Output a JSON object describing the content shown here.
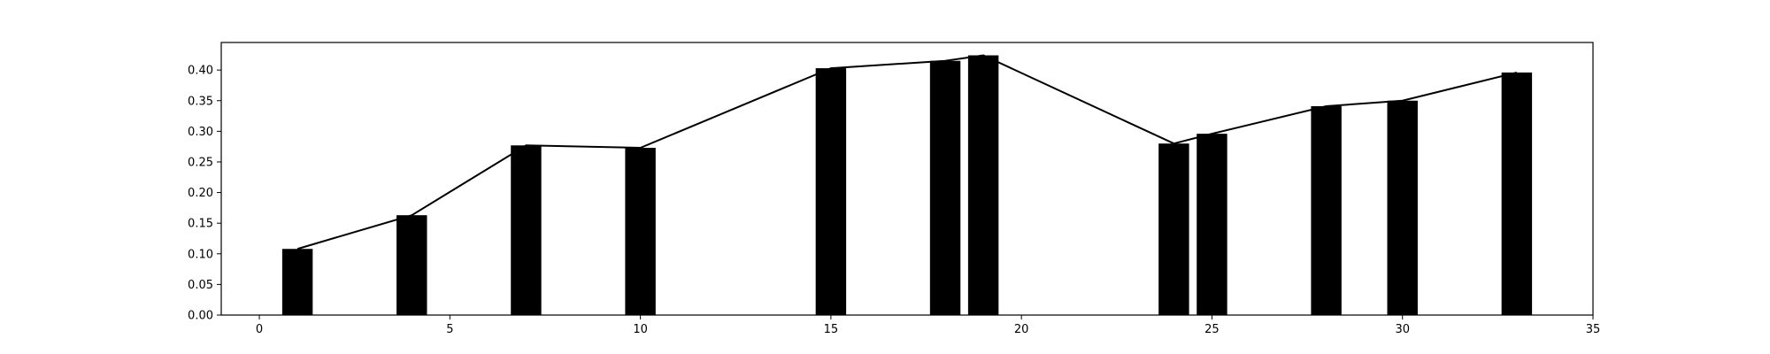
{
  "chart_data": {
    "type": "bar",
    "title": "",
    "xlabel": "",
    "ylabel": "",
    "xlim": [
      -1,
      35
    ],
    "ylim": [
      0,
      0.445
    ],
    "bar_width": 0.8,
    "grid": false,
    "legend": "none",
    "colors": {
      "bar": "#000000",
      "line": "#000000",
      "axes": "#000000"
    },
    "x_ticks": [
      0,
      5,
      10,
      15,
      20,
      25,
      30,
      35
    ],
    "x_tick_labels": [
      "0",
      "5",
      "10",
      "15",
      "20",
      "25",
      "30",
      "35"
    ],
    "y_ticks": [
      0,
      0.05,
      0.1,
      0.15,
      0.2,
      0.25,
      0.3,
      0.35,
      0.4
    ],
    "y_tick_labels": [
      "0.00",
      "0.05",
      "0.10",
      "0.15",
      "0.20",
      "0.25",
      "0.30",
      "0.35",
      "0.40"
    ],
    "x": [
      1,
      4,
      7,
      10,
      15,
      18,
      19,
      24,
      25,
      28,
      30,
      33
    ],
    "bar_values": [
      0.108,
      0.163,
      0.277,
      0.273,
      0.403,
      0.415,
      0.424,
      0.28,
      0.296,
      0.341,
      0.35,
      0.396
    ],
    "line_values": [
      0.108,
      0.163,
      0.277,
      0.273,
      0.403,
      0.415,
      0.424,
      0.28,
      0.296,
      0.341,
      0.35,
      0.396
    ]
  }
}
